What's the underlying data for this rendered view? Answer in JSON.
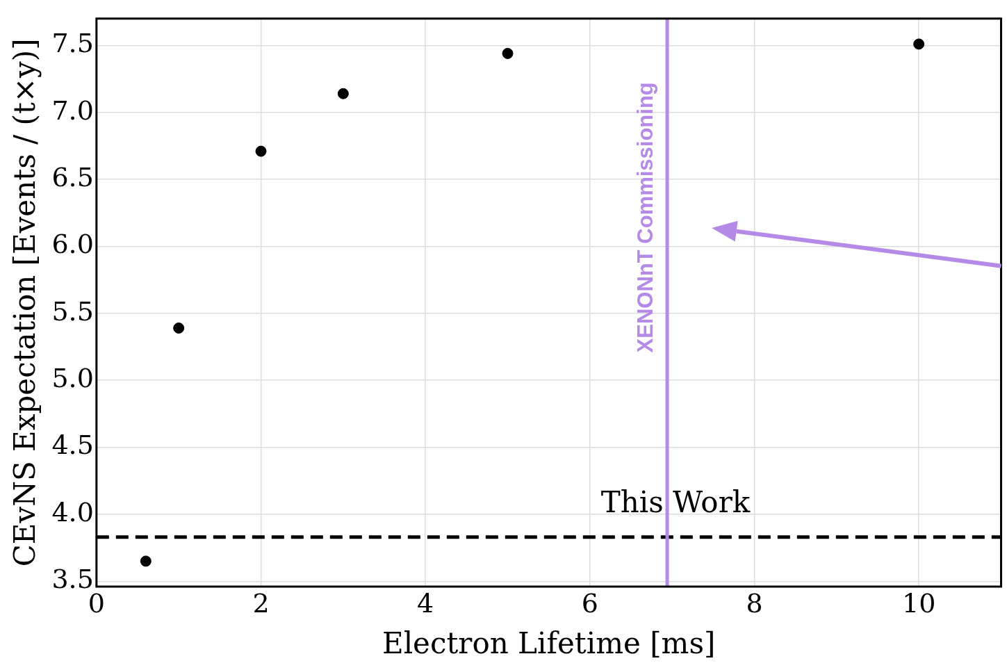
{
  "chart_data": {
    "type": "scatter",
    "xlabel": "Electron Lifetime [ms]",
    "ylabel": "CEvNS Expectation [Events / (t×y)]",
    "x": [
      0.6,
      1,
      2,
      3,
      5,
      10
    ],
    "series": [
      {
        "color": "#000000",
        "values": [
          3.65,
          5.39,
          6.71,
          7.14,
          7.44,
          7.51
        ]
      }
    ],
    "xlim": [
      0,
      11
    ],
    "xticks": [
      0,
      2,
      4,
      6,
      8,
      10
    ],
    "ylim": [
      3.46,
      7.7
    ],
    "yticks": [
      3.5,
      {
        "value": 4,
        "label": "4.0"
      },
      4.5,
      {
        "value": 5,
        "label": "5.0"
      },
      5.5,
      {
        "value": 6,
        "label": "6.0"
      },
      6.5,
      {
        "value": 7,
        "label": "7.0"
      },
      7.5
    ],
    "ref_lines": [
      {
        "axis": "y",
        "value": 3.83,
        "label": "This Work",
        "color": "#000000",
        "line_style": "dashed"
      },
      {
        "axis": "x",
        "value": 6.94,
        "label": "XENONnT Commissioning",
        "color": "#b48ae6",
        "line_style": "solid"
      }
    ],
    "grid": true,
    "marker": "circle",
    "legend": false
  }
}
